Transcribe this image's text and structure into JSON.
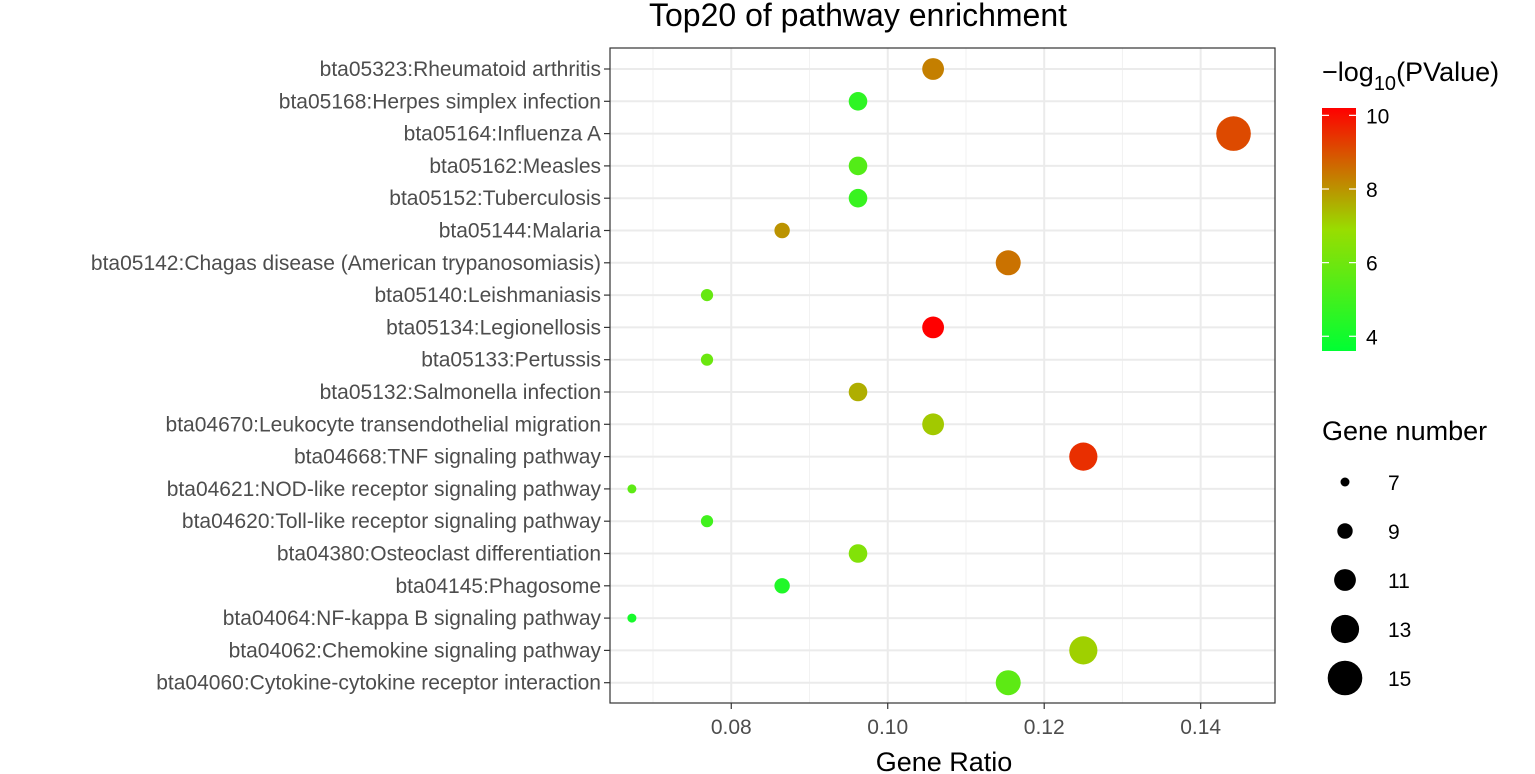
{
  "chart_data": {
    "type": "scatter",
    "title": "Top20 of pathway enrichment",
    "xlabel": "Gene Ratio",
    "ylabel": "",
    "xlim": [
      0.0645,
      0.1495
    ],
    "xticks": [
      "0.08",
      "0.10",
      "0.12",
      "0.14"
    ],
    "xtick_values": [
      0.08,
      0.1,
      0.12,
      0.14
    ],
    "grid": true,
    "color_legend": {
      "title_prefix": "−log",
      "title_sub": "10",
      "title_suffix": "(PValue)",
      "min": 3.6,
      "max": 10.2,
      "ticks": [
        "4",
        "6",
        "8",
        "10"
      ],
      "tick_values": [
        4,
        6,
        8,
        10
      ],
      "low_color": "#00ff33",
      "mid_color": "#99dd00",
      "high_color": "#ff0000"
    },
    "size_legend": {
      "title": "Gene number",
      "labels": [
        "7",
        "9",
        "11",
        "13",
        "15"
      ],
      "values": [
        7,
        9,
        11,
        13,
        15
      ]
    },
    "points": [
      {
        "label": "bta05323:Rheumatoid arthritis",
        "x": 0.1058,
        "count": 11,
        "neglog10p": 8.3
      },
      {
        "label": "bta05168:Herpes simplex infection",
        "x": 0.0962,
        "count": 10,
        "neglog10p": 4.6
      },
      {
        "label": "bta05164:Influenza A",
        "x": 0.1442,
        "count": 15,
        "neglog10p": 9.1
      },
      {
        "label": "bta05162:Measles",
        "x": 0.0962,
        "count": 10,
        "neglog10p": 5.4
      },
      {
        "label": "bta05152:Tuberculosis",
        "x": 0.0962,
        "count": 10,
        "neglog10p": 4.8
      },
      {
        "label": "bta05144:Malaria",
        "x": 0.0865,
        "count": 9,
        "neglog10p": 8.0
      },
      {
        "label": "bta05142:Chagas disease (American trypanosomiasis)",
        "x": 0.1154,
        "count": 12,
        "neglog10p": 8.5
      },
      {
        "label": "bta05140:Leishmaniasis",
        "x": 0.0769,
        "count": 8,
        "neglog10p": 5.8
      },
      {
        "label": "bta05134:Legionellosis",
        "x": 0.1058,
        "count": 11,
        "neglog10p": 10.2
      },
      {
        "label": "bta05133:Pertussis",
        "x": 0.0769,
        "count": 8,
        "neglog10p": 5.9
      },
      {
        "label": "bta05132:Salmonella infection",
        "x": 0.0962,
        "count": 10,
        "neglog10p": 7.6
      },
      {
        "label": "bta04670:Leukocyte transendothelial migration",
        "x": 0.1058,
        "count": 11,
        "neglog10p": 7.2
      },
      {
        "label": "bta04668:TNF signaling pathway",
        "x": 0.125,
        "count": 13,
        "neglog10p": 9.5
      },
      {
        "label": "bta04621:NOD-like receptor signaling pathway",
        "x": 0.0673,
        "count": 7,
        "neglog10p": 5.6
      },
      {
        "label": "bta04620:Toll-like receptor signaling pathway",
        "x": 0.0769,
        "count": 8,
        "neglog10p": 5.0
      },
      {
        "label": "bta04380:Osteoclast differentiation",
        "x": 0.0962,
        "count": 10,
        "neglog10p": 6.4
      },
      {
        "label": "bta04145:Phagosome",
        "x": 0.0865,
        "count": 9,
        "neglog10p": 4.3
      },
      {
        "label": "bta04064:NF-kappa B signaling pathway",
        "x": 0.0673,
        "count": 7,
        "neglog10p": 4.1
      },
      {
        "label": "bta04062:Chemokine signaling pathway",
        "x": 0.125,
        "count": 13,
        "neglog10p": 7.1
      },
      {
        "label": "bta04060:Cytokine-cytokine receptor interaction",
        "x": 0.1154,
        "count": 12,
        "neglog10p": 5.6
      }
    ]
  }
}
